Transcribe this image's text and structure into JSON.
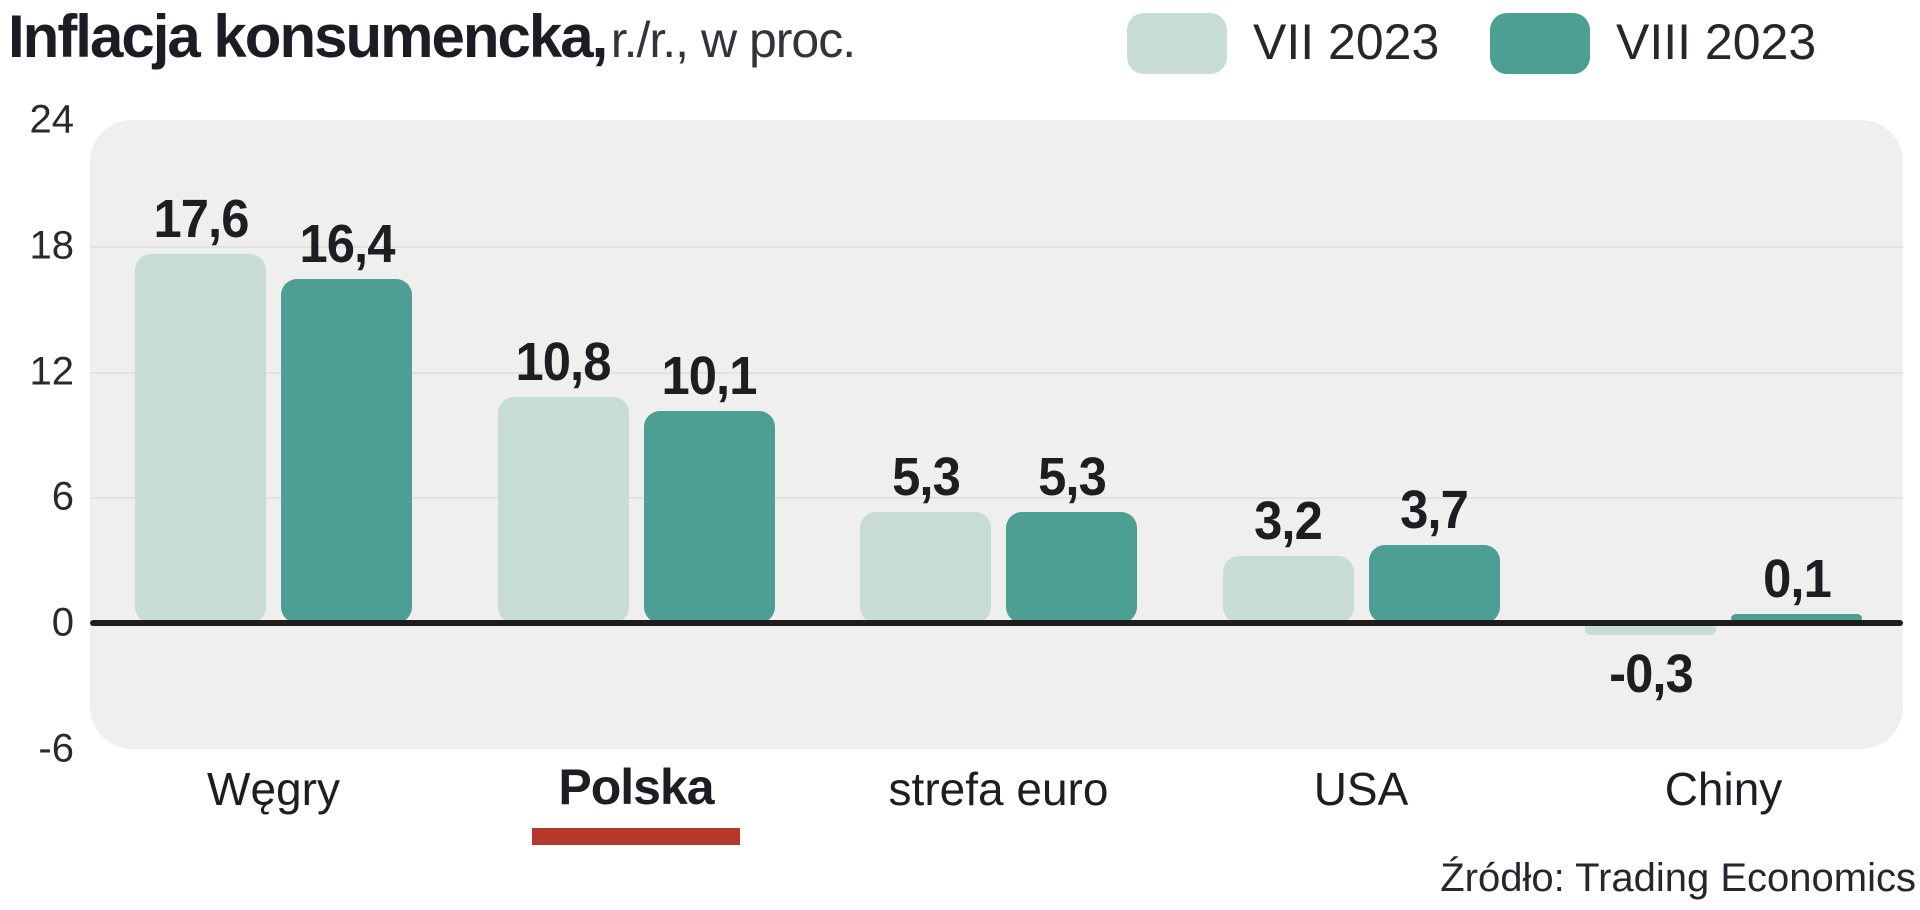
{
  "title": {
    "bold": "Inflacja konsumencka,",
    "rest": "r./r., w proc."
  },
  "source": "Źródło: Trading Economics",
  "colors": {
    "series_light": "#c7ddd4",
    "series_dark": "#4d9e93",
    "plot_background": "#efefed",
    "gridline": "#e2e2df",
    "baseline": "#1d1d1b",
    "highlight_underline": "#b4392c",
    "text": "#1d1d24"
  },
  "chart_data": {
    "type": "bar",
    "title": "Inflacja konsumencka, r./r., w proc.",
    "categories": [
      "Węgry",
      "Polska",
      "strefa euro",
      "USA",
      "Chiny"
    ],
    "highlight_category": "Polska",
    "series": [
      {
        "name": "VII 2023",
        "color": "#c7ddd4",
        "values": [
          17.6,
          10.8,
          5.3,
          3.2,
          -0.3
        ]
      },
      {
        "name": "VIII 2023",
        "color": "#4d9e93",
        "values": [
          16.4,
          10.1,
          5.3,
          3.7,
          0.1
        ]
      }
    ],
    "value_label_format": "decimal-comma",
    "yticks": [
      24,
      18,
      12,
      6,
      0,
      -6
    ],
    "ylim": [
      -6,
      24
    ],
    "grid": true,
    "legend_position": "top-right",
    "xlabel": "",
    "ylabel": ""
  }
}
